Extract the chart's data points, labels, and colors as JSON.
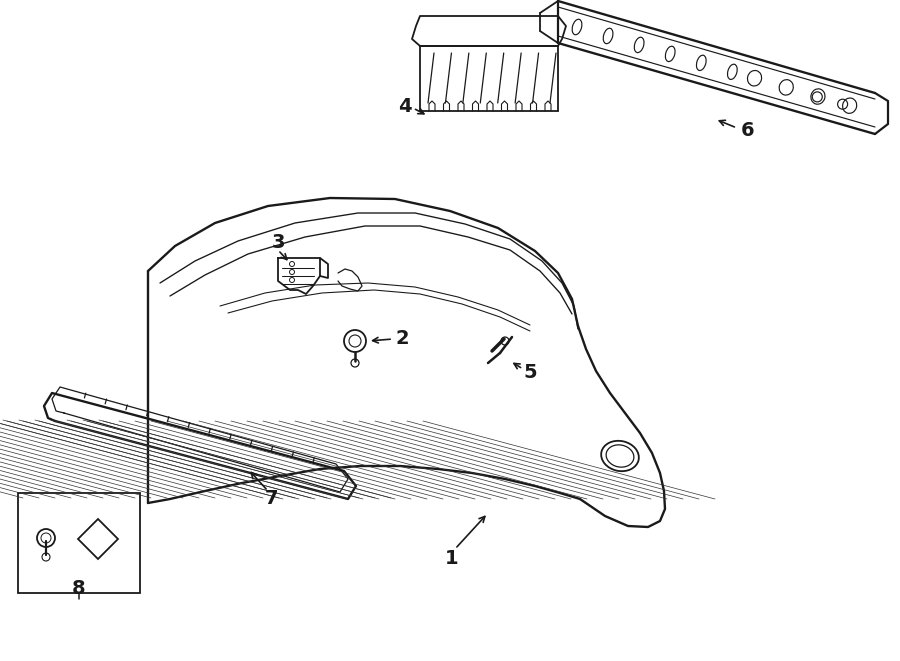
{
  "bg_color": "#ffffff",
  "line_color": "#1a1a1a",
  "lw": 1.3
}
